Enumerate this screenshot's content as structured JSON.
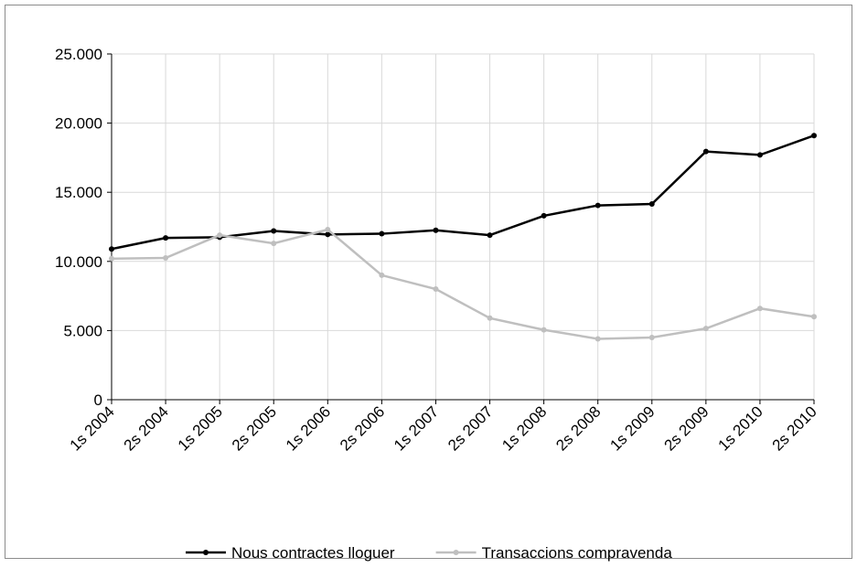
{
  "chart_data": {
    "type": "line",
    "categories": [
      "1s 2004",
      "2s 2004",
      "1s 2005",
      "2s 2005",
      "1s 2006",
      "2s 2006",
      "1s 2007",
      "2s 2007",
      "1s 2008",
      "2s 2008",
      "1s 2009",
      "2s 2009",
      "1s 2010",
      "2s 2010"
    ],
    "series": [
      {
        "name": "Nous contractes lloguer",
        "color": "#000000",
        "values": [
          10900,
          11700,
          11750,
          12200,
          11950,
          12000,
          12250,
          11900,
          13300,
          14050,
          14150,
          17950,
          17700,
          19100
        ]
      },
      {
        "name": "Transaccions compravenda",
        "color": "#bfbfbf",
        "values": [
          10200,
          10250,
          11900,
          11300,
          12300,
          9000,
          8000,
          5900,
          5050,
          4400,
          4500,
          5150,
          6600,
          6000
        ]
      }
    ],
    "ylim": [
      0,
      25000
    ],
    "yticks": [
      0,
      {
        "value": 5000,
        "label": "5.000"
      },
      {
        "value": 10000,
        "label": "10.000"
      },
      {
        "value": 15000,
        "label": "15.000"
      },
      {
        "value": 20000,
        "label": "20.000"
      },
      {
        "value": 25000,
        "label": "25.000"
      }
    ],
    "grid": true,
    "legend": "bottom"
  }
}
